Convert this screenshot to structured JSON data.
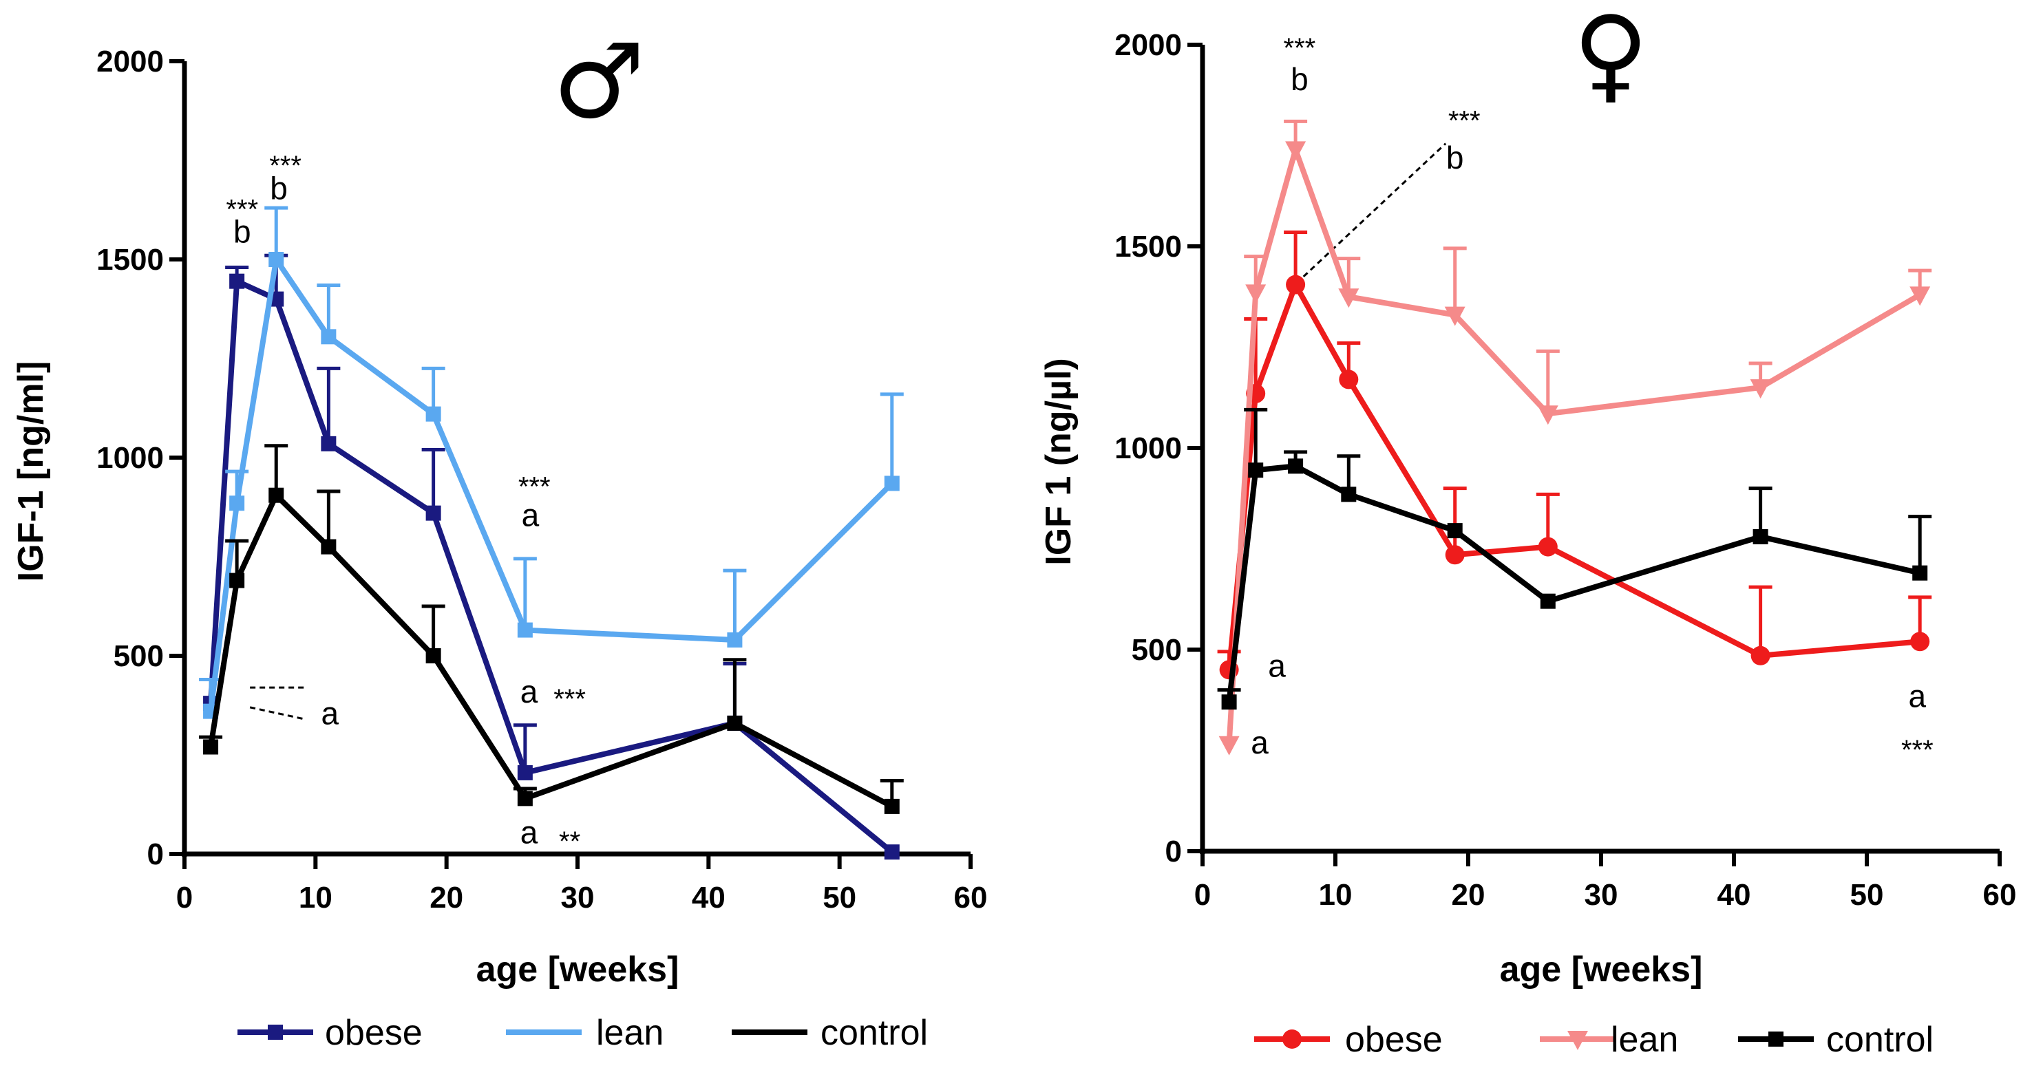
{
  "chart_data": [
    {
      "type": "line",
      "sex_symbol": "♂",
      "xlabel": "age [weeks]",
      "ylabel": "IGF-1 [ng/ml]",
      "xlim": [
        0,
        60
      ],
      "ylim": [
        0,
        2000
      ],
      "xticks": [
        0,
        10,
        20,
        30,
        40,
        50,
        60
      ],
      "yticks": [
        0,
        500,
        1000,
        1500,
        2000
      ],
      "series": [
        {
          "name": "obese",
          "color": "#1a1a80",
          "marker": "square",
          "x": [
            2,
            4,
            7,
            11,
            19,
            26,
            42,
            54
          ],
          "y": [
            380,
            1445,
            1400,
            1035,
            860,
            205,
            330,
            5
          ],
          "err": [
            0,
            35,
            110,
            190,
            160,
            120,
            150,
            0
          ]
        },
        {
          "name": "lean",
          "color": "#5aa8f0",
          "marker": "square",
          "x": [
            2,
            4,
            7,
            11,
            19,
            26,
            42,
            54
          ],
          "y": [
            360,
            885,
            1500,
            1305,
            1110,
            565,
            540,
            935
          ],
          "err": [
            80,
            80,
            130,
            130,
            115,
            180,
            175,
            225
          ]
        },
        {
          "name": "control",
          "color": "#000000",
          "marker": "square",
          "x": [
            2,
            4,
            7,
            11,
            19,
            26,
            42,
            54
          ],
          "y": [
            270,
            690,
            905,
            775,
            500,
            140,
            330,
            120
          ],
          "err": [
            25,
            100,
            125,
            140,
            125,
            25,
            160,
            65
          ]
        }
      ],
      "annotations": [
        {
          "text": "***",
          "x": 4.4,
          "y": 1645
        },
        {
          "text": "b",
          "x": 4.4,
          "y": 1570
        },
        {
          "text": "***",
          "x": 7.7,
          "y": 1755
        },
        {
          "text": "b",
          "x": 7.2,
          "y": 1680
        },
        {
          "text": "***",
          "x": 26.7,
          "y": 945
        },
        {
          "text": "a",
          "x": 26.4,
          "y": 855
        },
        {
          "text": "a",
          "x": 11.1,
          "y": 355
        },
        {
          "text": "a",
          "x": 26.3,
          "y": 410
        },
        {
          "text": "***",
          "x": 29.4,
          "y": 410
        },
        {
          "text": "a",
          "x": 26.3,
          "y": 55
        },
        {
          "text": "**",
          "x": 29.4,
          "y": 50
        }
      ],
      "dashed_lines": [
        {
          "from": [
            5,
            420
          ],
          "to": [
            9.2,
            420
          ]
        },
        {
          "from": [
            5,
            370
          ],
          "to": [
            9.2,
            340
          ]
        }
      ]
    },
    {
      "type": "line",
      "sex_symbol": "♀",
      "xlabel": "age [weeks]",
      "ylabel": "IGF 1 (ng/µl)",
      "xlim": [
        0,
        60
      ],
      "ylim": [
        0,
        2000
      ],
      "xticks": [
        0,
        10,
        20,
        30,
        40,
        50,
        60
      ],
      "yticks": [
        0,
        500,
        1000,
        1500,
        2000
      ],
      "series": [
        {
          "name": "obese",
          "color": "#ee1c1c",
          "marker": "circle",
          "x": [
            2,
            4,
            7,
            11,
            19,
            26,
            42,
            54
          ],
          "y": [
            450,
            1135,
            1405,
            1170,
            735,
            755,
            485,
            520
          ],
          "err": [
            45,
            185,
            130,
            90,
            165,
            130,
            170,
            110
          ]
        },
        {
          "name": "lean",
          "color": "#f58a8a",
          "marker": "triangle-down",
          "x": [
            2,
            4,
            7,
            11,
            19,
            26,
            42,
            54
          ],
          "y": [
            265,
            1385,
            1740,
            1375,
            1330,
            1085,
            1150,
            1380
          ],
          "err": [
            0,
            90,
            70,
            95,
            165,
            155,
            60,
            60
          ]
        },
        {
          "name": "control",
          "color": "#000000",
          "marker": "square",
          "x": [
            2,
            4,
            7,
            11,
            19,
            26,
            42,
            54
          ],
          "y": [
            370,
            945,
            955,
            885,
            795,
            620,
            780,
            690
          ],
          "err": [
            30,
            150,
            35,
            95,
            0,
            0,
            120,
            140
          ]
        }
      ],
      "annotations": [
        {
          "text": "***",
          "x": 7.3,
          "y": 2010
        },
        {
          "text": "b",
          "x": 7.3,
          "y": 1915
        },
        {
          "text": "***",
          "x": 19.7,
          "y": 1830
        },
        {
          "text": "b",
          "x": 19.0,
          "y": 1720
        },
        {
          "text": "a",
          "x": 5.6,
          "y": 460
        },
        {
          "text": "a",
          "x": 4.3,
          "y": 270
        },
        {
          "text": "a",
          "x": 53.8,
          "y": 385
        },
        {
          "text": "***",
          "x": 53.8,
          "y": 270
        }
      ],
      "dashed_lines": [
        {
          "from": [
            7.6,
            1425
          ],
          "to": [
            18.3,
            1755
          ]
        }
      ]
    }
  ]
}
